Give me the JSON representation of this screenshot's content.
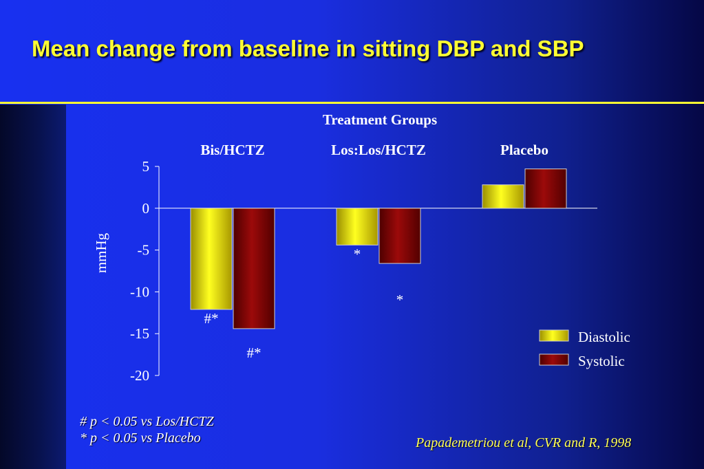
{
  "slide": {
    "title": "Mean change from baseline in sitting DBP and SBP",
    "footnotes": [
      "# p < 0.05 vs Los/HCTZ",
      "* p < 0.05 vs Placebo"
    ],
    "citation": "Papademetriou et al, CVR and R, 1998"
  },
  "colors": {
    "title": "#ffff33",
    "diastolic": "#ffff00",
    "systolic": "#8b0000",
    "axis": "#ffffff",
    "background": "#1a2ee0"
  },
  "chart_data": {
    "type": "bar",
    "title": "Treatment Groups",
    "ylabel": "mmHg",
    "xlabel": "",
    "categories": [
      "Bis/HCTZ",
      "Los:Los/HCTZ",
      "Placebo"
    ],
    "series": [
      {
        "name": "Diastolic",
        "values": [
          -12.1,
          -4.4,
          2.8
        ]
      },
      {
        "name": "Systolic",
        "values": [
          -14.4,
          -6.6,
          4.7
        ]
      }
    ],
    "annotations": [
      [
        "#*",
        "#*"
      ],
      [
        "*",
        "*"
      ],
      [
        "",
        ""
      ]
    ],
    "ylim": [
      -20,
      5
    ],
    "yticks": [
      5,
      0,
      -5,
      -10,
      -15,
      -20
    ],
    "legend": "right",
    "grid": false
  }
}
